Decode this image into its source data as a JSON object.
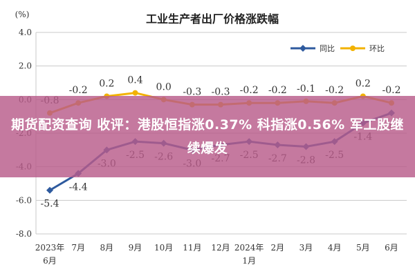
{
  "chart_data": {
    "type": "line",
    "title": "工业生产者出厂价格涨跌幅",
    "unit": "(%)",
    "ylim": [
      -8.0,
      4.0
    ],
    "yticks": [
      "4.0",
      "2.0",
      "0.0",
      "-2.0",
      "-4.0",
      "-6.0",
      "-8.0"
    ],
    "categories": [
      [
        "2023年",
        "6月"
      ],
      [
        "7月"
      ],
      [
        "8月"
      ],
      [
        "9月"
      ],
      [
        "10月"
      ],
      [
        "11月"
      ],
      [
        "12月"
      ],
      [
        "2024年",
        "1月"
      ],
      [
        "2月"
      ],
      [
        "3月"
      ],
      [
        "4月"
      ],
      [
        "5月"
      ],
      [
        "6月"
      ]
    ],
    "series": [
      {
        "name": "同比",
        "color": "#2E5A9E",
        "marker": "diamond",
        "values": [
          -5.4,
          -4.4,
          -3.0,
          -2.5,
          -2.6,
          -3.0,
          -2.7,
          -2.5,
          -2.7,
          -2.8,
          -2.5,
          -1.4,
          -0.8
        ],
        "labels": [
          "-5.4",
          "-4.4",
          "-3.0",
          "-2.5",
          "-2.6",
          "-3.0",
          "-2.7",
          "-2.5",
          "-2.7",
          "-2.8",
          "-2.5",
          "-1.4",
          "-0.8"
        ]
      },
      {
        "name": "环比",
        "color": "#F2B200",
        "marker": "circle",
        "values": [
          -0.8,
          -0.2,
          0.2,
          0.4,
          0.0,
          -0.3,
          -0.3,
          -0.2,
          -0.2,
          -0.1,
          -0.2,
          0.2,
          -0.2
        ],
        "labels": [
          "-0.8",
          "-0.2",
          "0.2",
          "0.4",
          "0.0",
          "-0.3",
          "-0.3",
          "-0.2",
          "-0.2",
          "-0.1",
          "-0.2",
          "0.2",
          "-0.2"
        ]
      }
    ],
    "grid": true,
    "legend_position": "top-right"
  },
  "overlay": {
    "headline": "期货配资查询 收评：港股恒指涨0.37% 科指涨0.56% 军工股继续爆发"
  }
}
